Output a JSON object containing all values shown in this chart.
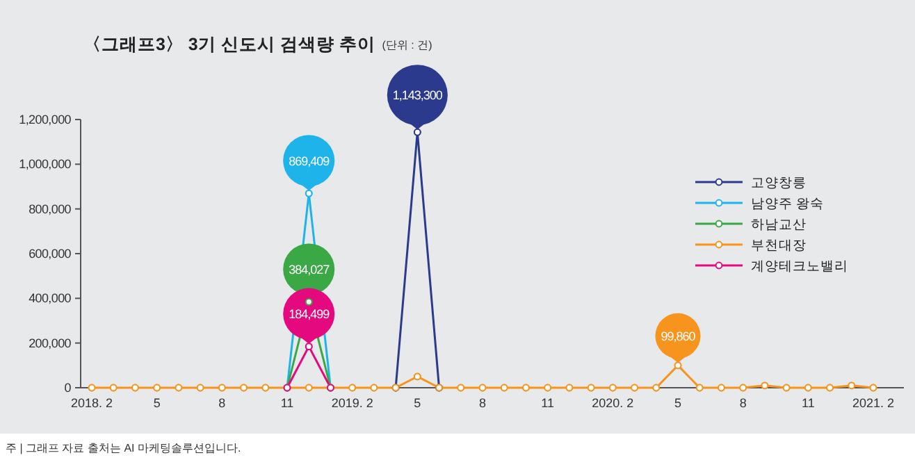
{
  "chart_data": {
    "type": "line",
    "title": "〈그래프3〉 3기 신도시 검색량 추이",
    "subtitle": "(단위 : 건)",
    "annotations": [
      "주 | 그래프 자료 출처는 AI 마케팅솔루션입니다."
    ],
    "categories": [
      "2018. 2",
      null,
      null,
      "5",
      null,
      null,
      "8",
      null,
      null,
      "11",
      null,
      null,
      "2019. 2",
      null,
      null,
      "5",
      null,
      null,
      "8",
      null,
      null,
      "11",
      null,
      null,
      "2020. 2",
      null,
      null,
      "5",
      null,
      null,
      "8",
      null,
      null,
      "11",
      null,
      null,
      "2021. 2"
    ],
    "series": [
      {
        "name": "고양창릉",
        "color": "#2b3a8c",
        "values": [
          null,
          null,
          null,
          null,
          null,
          null,
          null,
          null,
          null,
          null,
          null,
          null,
          null,
          null,
          0,
          1143300,
          0,
          null,
          null,
          null,
          null,
          null,
          null,
          null,
          null,
          null,
          null,
          null,
          null,
          null,
          null,
          null,
          null,
          null,
          null,
          null,
          null
        ],
        "value_labels": [
          null,
          null,
          null,
          null,
          null,
          null,
          null,
          null,
          null,
          null,
          null,
          null,
          null,
          null,
          null,
          "1,143,300",
          null,
          null,
          null,
          null,
          null,
          null,
          null,
          null,
          null,
          null,
          null,
          null,
          null,
          null,
          null,
          null,
          null,
          null,
          null,
          null,
          null
        ]
      },
      {
        "name": "남양주 왕숙",
        "color": "#1eb4ea",
        "values": [
          null,
          null,
          null,
          null,
          null,
          null,
          null,
          null,
          null,
          0,
          869409,
          0,
          null,
          null,
          null,
          null,
          null,
          null,
          null,
          null,
          null,
          null,
          null,
          null,
          null,
          null,
          null,
          null,
          null,
          null,
          null,
          null,
          null,
          null,
          null,
          null,
          null
        ],
        "value_labels": [
          null,
          null,
          null,
          null,
          null,
          null,
          null,
          null,
          null,
          null,
          "869,409",
          null,
          null,
          null,
          null,
          null,
          null,
          null,
          null,
          null,
          null,
          null,
          null,
          null,
          null,
          null,
          null,
          null,
          null,
          null,
          null,
          null,
          null,
          null,
          null,
          null,
          null
        ]
      },
      {
        "name": "하남교산",
        "color": "#3aa845",
        "values": [
          null,
          null,
          null,
          null,
          null,
          null,
          null,
          null,
          null,
          0,
          384027,
          0,
          null,
          null,
          null,
          null,
          null,
          null,
          null,
          null,
          null,
          null,
          null,
          null,
          null,
          null,
          null,
          null,
          null,
          null,
          null,
          null,
          null,
          null,
          null,
          null,
          null
        ],
        "value_labels": [
          null,
          null,
          null,
          null,
          null,
          null,
          null,
          null,
          null,
          null,
          "384,027",
          null,
          null,
          null,
          null,
          null,
          null,
          null,
          null,
          null,
          null,
          null,
          null,
          null,
          null,
          null,
          null,
          null,
          null,
          null,
          null,
          null,
          null,
          null,
          null,
          null,
          null
        ]
      },
      {
        "name": "부천대장",
        "color": "#f7941d",
        "values": [
          0,
          0,
          0,
          0,
          0,
          0,
          0,
          0,
          0,
          0,
          0,
          0,
          0,
          0,
          0,
          50000,
          0,
          0,
          0,
          0,
          0,
          0,
          0,
          0,
          0,
          0,
          0,
          99860,
          0,
          0,
          0,
          10000,
          0,
          0,
          0,
          10000,
          0
        ],
        "value_labels": [
          null,
          null,
          null,
          null,
          null,
          null,
          null,
          null,
          null,
          null,
          null,
          null,
          null,
          null,
          null,
          null,
          null,
          null,
          null,
          null,
          null,
          null,
          null,
          null,
          null,
          null,
          null,
          "99,860",
          null,
          null,
          null,
          null,
          null,
          null,
          null,
          null,
          null
        ]
      },
      {
        "name": "계양테크노밸리",
        "color": "#e5097f",
        "values": [
          null,
          null,
          null,
          null,
          null,
          null,
          null,
          null,
          null,
          0,
          184499,
          0,
          null,
          null,
          null,
          null,
          null,
          null,
          null,
          null,
          null,
          null,
          null,
          null,
          null,
          null,
          null,
          null,
          null,
          null,
          null,
          null,
          null,
          null,
          null,
          null,
          null
        ],
        "value_labels": [
          null,
          null,
          null,
          null,
          null,
          null,
          null,
          null,
          null,
          null,
          "184,499",
          null,
          null,
          null,
          null,
          null,
          null,
          null,
          null,
          null,
          null,
          null,
          null,
          null,
          null,
          null,
          null,
          null,
          null,
          null,
          null,
          null,
          null,
          null,
          null,
          null,
          null
        ]
      }
    ],
    "ylim": [
      0,
      1200000
    ],
    "yticks": [
      {
        "value": 0,
        "label": "0"
      },
      {
        "value": 200000,
        "label": "200,000"
      },
      {
        "value": 400000,
        "label": "400,000"
      },
      {
        "value": 600000,
        "label": "600,000"
      },
      {
        "value": 800000,
        "label": "800,000"
      },
      {
        "value": 1000000,
        "label": "1,000,000"
      },
      {
        "value": 1200000,
        "label": "1,200,000"
      }
    ],
    "marker": "circle",
    "line_style": "solid",
    "grid": false,
    "legend": "right"
  }
}
